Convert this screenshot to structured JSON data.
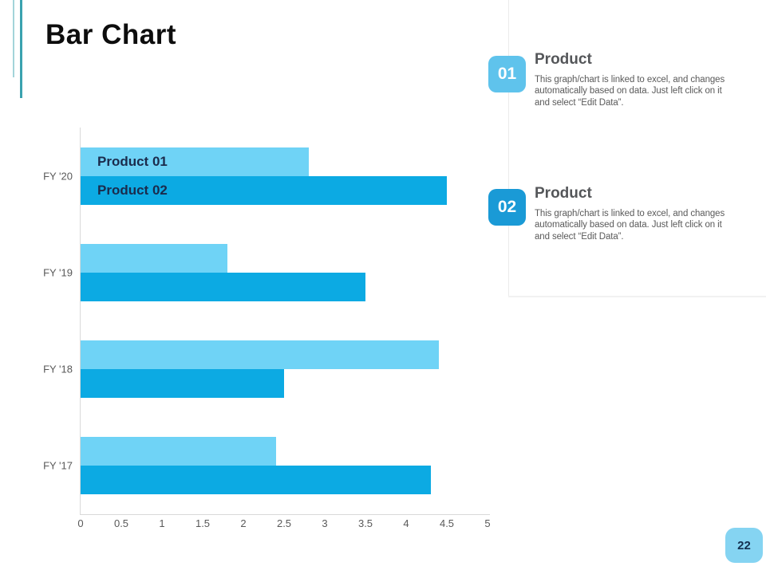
{
  "slide": {
    "title": "Bar Chart",
    "page_number": "22"
  },
  "chart_data": {
    "type": "bar",
    "orientation": "horizontal",
    "title": "",
    "categories": [
      "FY '20",
      "FY '19",
      "FY '18",
      "FY '17"
    ],
    "series": [
      {
        "name": "Product 01",
        "color": "#6fd3f6",
        "values": [
          2.8,
          1.8,
          4.4,
          2.4
        ]
      },
      {
        "name": "Product 02",
        "color": "#0caae3",
        "values": [
          4.5,
          3.5,
          2.5,
          4.3
        ]
      }
    ],
    "xlim": [
      0,
      5
    ],
    "x_ticks": [
      "0",
      "0.5",
      "1",
      "1.5",
      "2",
      "2.5",
      "3",
      "3.5",
      "4",
      "4.5",
      "5"
    ],
    "grid": false,
    "legend_position": "labels inside first category bars",
    "axis_line_color": "#d9d9d9"
  },
  "right_panel": {
    "items": [
      {
        "number": "01",
        "title": "Product",
        "description": "This graph/chart is linked to excel, and changes automatically based on data. Just left click on it and select “Edit Data”.",
        "badge_color": "#5fc3ec"
      },
      {
        "number": "02",
        "title": "Product",
        "description": "This graph/chart is linked to excel, and changes automatically based on data. Just left click on it and select “Edit Data”.",
        "badge_color": "#1a9ad6"
      }
    ]
  },
  "colors": {
    "accent_teal_light": "#a3d4da",
    "accent_teal_dark": "#3aa2af",
    "series1": "#6fd3f6",
    "series2": "#0caae3",
    "bar_label_text": "#1b2b4c",
    "page_badge_background": "#85d4f2",
    "page_badge_text": "#14304f",
    "axis_line": "#d9d9d9",
    "divider": "#ebebeb"
  }
}
